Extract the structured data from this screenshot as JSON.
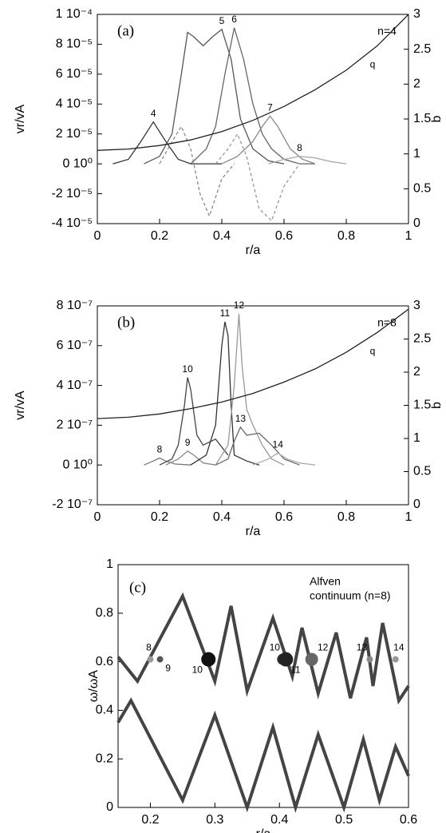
{
  "chart_data": [
    {
      "type": "line",
      "label": "(a)",
      "annotations": [
        "n=4"
      ],
      "xlabel": "r/a",
      "ylabel": "vr/vA",
      "y2label": "b",
      "xlim": [
        0,
        1
      ],
      "xticks": [
        0,
        0.2,
        0.4,
        0.6,
        0.8,
        1
      ],
      "ylim": [
        -4e-05,
        0.0001
      ],
      "yticks": [
        {
          "value": -4e-05,
          "label": "-4 10⁻⁵"
        },
        {
          "value": -2e-05,
          "label": "-2 10⁻⁵"
        },
        {
          "value": 0,
          "label": "0 10⁰"
        },
        {
          "value": 2e-05,
          "label": "2 10⁻⁵"
        },
        {
          "value": 4e-05,
          "label": "4 10⁻⁵"
        },
        {
          "value": 6e-05,
          "label": "6 10⁻⁵"
        },
        {
          "value": 8e-05,
          "label": "8 10⁻⁵"
        },
        {
          "value": 0.0001,
          "label": "1 10⁻⁴"
        }
      ],
      "y2lim": [
        0,
        3
      ],
      "y2ticks": [
        0,
        0.5,
        1,
        1.5,
        2,
        2.5,
        3
      ],
      "series": [
        {
          "name": "4",
          "color": "#333333",
          "x": [
            0.05,
            0.1,
            0.14,
            0.18,
            0.22,
            0.26,
            0.3,
            0.35,
            0.4
          ],
          "values": [
            0,
            3e-06,
            1.5e-05,
            2.8e-05,
            1.5e-05,
            3e-06,
            0,
            0,
            0
          ]
        },
        {
          "name": "5",
          "color": "#555555",
          "x": [
            0.15,
            0.2,
            0.24,
            0.27,
            0.29,
            0.31,
            0.34,
            0.37,
            0.4,
            0.43,
            0.46,
            0.5,
            0.55,
            0.6
          ],
          "values": [
            0,
            5e-06,
            2e-05,
            6e-05,
            8.8e-05,
            8.5e-05,
            7.9e-05,
            8.5e-05,
            9e-05,
            7e-05,
            3e-05,
            1e-05,
            2e-06,
            0
          ]
        },
        {
          "name": "6",
          "color": "#666666",
          "x": [
            0.3,
            0.35,
            0.38,
            0.41,
            0.44,
            0.47,
            0.5,
            0.53,
            0.56,
            0.6,
            0.65,
            0.7
          ],
          "values": [
            0,
            1e-05,
            2.5e-05,
            6e-05,
            9.1e-05,
            7e-05,
            4e-05,
            2e-05,
            1e-05,
            3e-06,
            0,
            0
          ]
        },
        {
          "name": "7",
          "color": "#888888",
          "x": [
            0.4,
            0.45,
            0.5,
            0.53,
            0.555,
            0.58,
            0.62,
            0.66,
            0.7
          ],
          "values": [
            0,
            5e-06,
            1.5e-05,
            2.5e-05,
            3.2e-05,
            2.5e-05,
            1e-05,
            3e-06,
            0
          ]
        },
        {
          "name": "8",
          "color": "#aaaaaa",
          "x": [
            0.55,
            0.6,
            0.65,
            0.7,
            0.75,
            0.8
          ],
          "values": [
            0,
            3e-06,
            5e-06,
            4e-06,
            1.5e-06,
            0
          ]
        },
        {
          "color": "#888888",
          "dash": true,
          "x": [
            0.2,
            0.24,
            0.27,
            0.3,
            0.33,
            0.36,
            0.4,
            0.44
          ],
          "values": [
            0,
            1.5e-05,
            2.5e-05,
            1e-05,
            -2e-05,
            -3.5e-05,
            -1e-05,
            0
          ]
        },
        {
          "color": "#999999",
          "dash": true,
          "x": [
            0.38,
            0.42,
            0.45,
            0.48,
            0.52,
            0.56,
            0.6,
            0.65
          ],
          "values": [
            0,
            1e-05,
            2e-05,
            5e-06,
            -3e-05,
            -3.8e-05,
            -1.5e-05,
            0
          ]
        },
        {
          "name": "q",
          "color": "#222222",
          "axis": "y2",
          "x": [
            0,
            0.1,
            0.2,
            0.3,
            0.4,
            0.5,
            0.6,
            0.7,
            0.8,
            0.9,
            1
          ],
          "values": [
            1.05,
            1.07,
            1.12,
            1.2,
            1.32,
            1.48,
            1.68,
            1.92,
            2.2,
            2.55,
            3
          ]
        }
      ]
    },
    {
      "type": "line",
      "label": "(b)",
      "annotations": [
        "n=8"
      ],
      "xlabel": "r/a",
      "ylabel": "vr/vA",
      "y2label": "b",
      "xlim": [
        0,
        1
      ],
      "xticks": [
        0,
        0.2,
        0.4,
        0.6,
        0.8,
        1
      ],
      "ylim": [
        -2e-07,
        8e-07
      ],
      "yticks": [
        {
          "value": -2e-07,
          "label": "-2 10⁻⁷"
        },
        {
          "value": 0,
          "label": "0 10⁰"
        },
        {
          "value": 2e-07,
          "label": "2 10⁻⁷"
        },
        {
          "value": 4e-07,
          "label": "4 10⁻⁷"
        },
        {
          "value": 6e-07,
          "label": "6 10⁻⁷"
        },
        {
          "value": 8e-07,
          "label": "8 10⁻⁷"
        }
      ],
      "y2lim": [
        0,
        3
      ],
      "y2ticks": [
        0,
        0.5,
        1,
        1.5,
        2,
        2.5,
        3
      ],
      "series": [
        {
          "name": "8",
          "color": "#777777",
          "x": [
            0.15,
            0.18,
            0.2,
            0.22,
            0.25,
            0.3
          ],
          "values": [
            0,
            2e-08,
            3.5e-08,
            2e-08,
            5e-09,
            0
          ]
        },
        {
          "name": "9",
          "color": "#888888",
          "x": [
            0.22,
            0.26,
            0.29,
            0.31,
            0.34,
            0.38
          ],
          "values": [
            0,
            3e-08,
            7e-08,
            5e-08,
            1e-08,
            0
          ]
        },
        {
          "name": "10",
          "color": "#444444",
          "x": [
            0.2,
            0.24,
            0.26,
            0.28,
            0.29,
            0.3,
            0.32,
            0.34,
            0.38,
            0.42
          ],
          "values": [
            0,
            3e-08,
            1e-07,
            3e-07,
            4.4e-07,
            3.8e-07,
            1.5e-07,
            1e-07,
            1.3e-07,
            5e-08
          ]
        },
        {
          "name": "11",
          "color": "#333333",
          "x": [
            0.3,
            0.35,
            0.38,
            0.4,
            0.41,
            0.42,
            0.43,
            0.44,
            0.48,
            0.52
          ],
          "values": [
            0,
            5e-08,
            2e-07,
            6e-07,
            7.2e-07,
            6.5e-07,
            3e-07,
            5e-08,
            2e-08,
            0
          ]
        },
        {
          "name": "12",
          "color": "#999999",
          "x": [
            0.38,
            0.42,
            0.44,
            0.455,
            0.465,
            0.48,
            0.5,
            0.53,
            0.56,
            0.6
          ],
          "values": [
            0,
            1e-07,
            4e-07,
            7.6e-07,
            5e-07,
            2.8e-07,
            2e-07,
            1e-07,
            3e-08,
            0
          ]
        },
        {
          "name": "13",
          "color": "#666666",
          "x": [
            0.38,
            0.42,
            0.44,
            0.46,
            0.48,
            0.52,
            0.56,
            0.6,
            0.65
          ],
          "values": [
            0,
            3e-08,
            1.2e-07,
            1.9e-07,
            1.5e-07,
            1.6e-07,
            1e-07,
            3e-08,
            0
          ]
        },
        {
          "name": "14",
          "color": "#aaaaaa",
          "x": [
            0.5,
            0.55,
            0.58,
            0.61,
            0.65,
            0.7
          ],
          "values": [
            0,
            3e-08,
            6e-08,
            3e-08,
            1e-08,
            0
          ]
        },
        {
          "name": "q",
          "color": "#222222",
          "axis": "y2",
          "x": [
            0,
            0.1,
            0.2,
            0.3,
            0.4,
            0.5,
            0.6,
            0.7,
            0.8,
            0.9,
            1
          ],
          "values": [
            1.3,
            1.32,
            1.37,
            1.45,
            1.55,
            1.68,
            1.85,
            2.05,
            2.3,
            2.6,
            2.95
          ]
        }
      ]
    },
    {
      "type": "line",
      "label": "(c)",
      "annotations": [
        "Alfven",
        "continuum (n=8)"
      ],
      "xlabel": "r/a",
      "ylabel": "ω/ωA",
      "xlim": [
        0.15,
        0.6
      ],
      "xticks": [
        0.2,
        0.3,
        0.4,
        0.5,
        0.6
      ],
      "ylim": [
        0,
        1
      ],
      "yticks": [
        0,
        0.2,
        0.4,
        0.6,
        0.8,
        1
      ],
      "series": [
        {
          "color": "#444444",
          "width": 4,
          "x": [
            0.15,
            0.18,
            0.25,
            0.3,
            0.325,
            0.35,
            0.39,
            0.42,
            0.435,
            0.46,
            0.488,
            0.51,
            0.535,
            0.545,
            0.56,
            0.585,
            0.6
          ],
          "values": [
            0.62,
            0.52,
            0.87,
            0.52,
            0.83,
            0.48,
            0.78,
            0.54,
            0.74,
            0.47,
            0.72,
            0.45,
            0.7,
            0.5,
            0.76,
            0.44,
            0.5
          ]
        },
        {
          "color": "#444444",
          "width": 4,
          "x": [
            0.15,
            0.17,
            0.25,
            0.3,
            0.35,
            0.39,
            0.425,
            0.46,
            0.5,
            0.53,
            0.555,
            0.58,
            0.6
          ],
          "values": [
            0.35,
            0.44,
            0.03,
            0.38,
            0,
            0.33,
            0,
            0.3,
            0,
            0.28,
            0.03,
            0.25,
            0.13
          ]
        }
      ],
      "points": {
        "labels": [
          "8",
          "9",
          "10",
          "10",
          "11",
          "12",
          "13",
          "14"
        ],
        "x": [
          0.2,
          0.215,
          0.29,
          0.405,
          0.41,
          0.45,
          0.54,
          0.58
        ],
        "y": [
          0.61,
          0.61,
          0.61,
          0.61,
          0.61,
          0.61,
          0.61,
          0.61
        ],
        "sizes": [
          4,
          4,
          9,
          7,
          9,
          8,
          4,
          4
        ],
        "colors": [
          "#999999",
          "#555555",
          "#111111",
          "#333333",
          "#222222",
          "#666666",
          "#888888",
          "#999999"
        ]
      }
    }
  ]
}
